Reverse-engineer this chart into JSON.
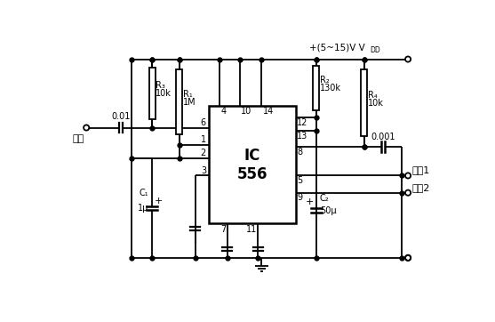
{
  "bg_color": "#ffffff",
  "ic_label": "IC\n556",
  "vdd_text": "+(5~15)V V",
  "vdd_sub": "DD",
  "input_label": "输入",
  "output1_label": "输出1",
  "output2_label": "输出2",
  "R1_label": "R₁",
  "R1_val": "1M",
  "R2_label": "R₂",
  "R2_val": "130k",
  "R3_label": "R₃",
  "R3_val": "10k",
  "R4_label": "R₄",
  "R4_val": "10k",
  "C1_label": "C₁",
  "C1_val": "1μ",
  "C2_label": "C₂",
  "C2_val": "50μ",
  "cap001_val": "0.01",
  "cap0001_val": "0.001"
}
